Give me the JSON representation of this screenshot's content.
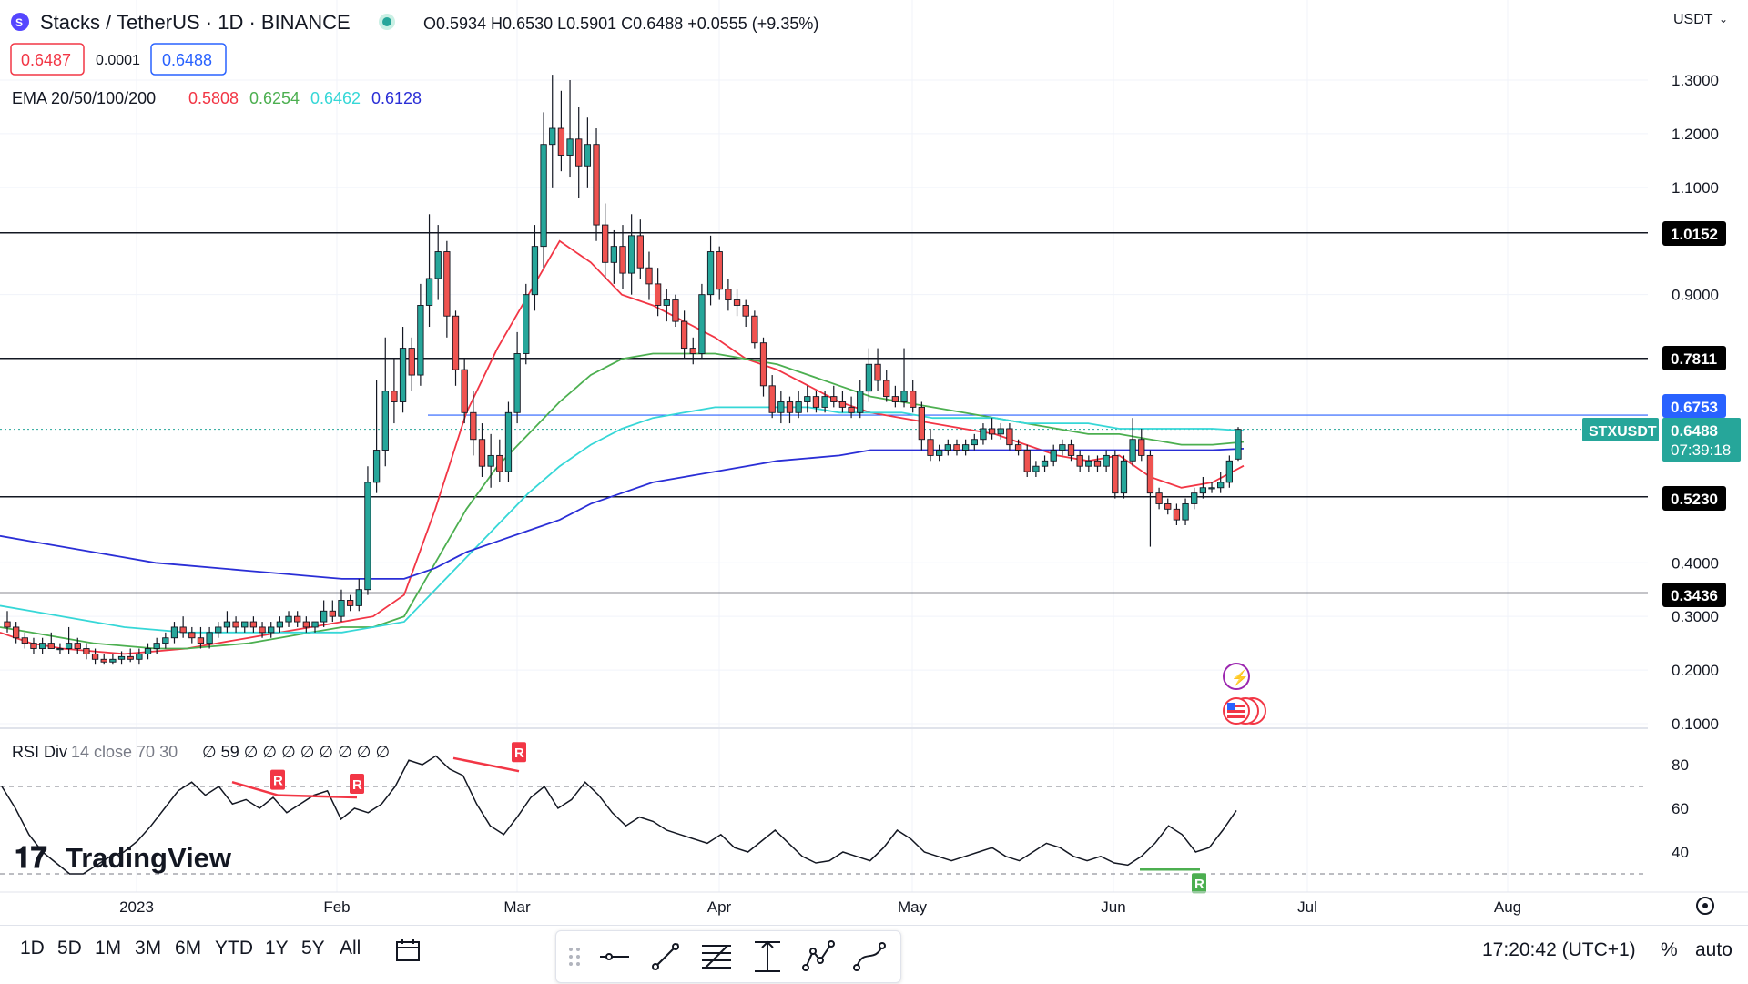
{
  "header": {
    "symbol_name": "Stacks / TetherUS · 1D · BINANCE",
    "ohlc": "O0.5934 H0.6530 L0.5901 C0.6488 +0.0555 (+9.35%)",
    "bid": "0.6487",
    "spread": "0.0001",
    "ask": "0.6488",
    "currency": "USDT"
  },
  "ema_legend": {
    "label": "EMA 20/50/100/200",
    "values": [
      "0.5808",
      "0.6254",
      "0.6462",
      "0.6128"
    ],
    "colors": [
      "#f23645",
      "#4caf50",
      "#36d7d7",
      "#2a2ed6"
    ]
  },
  "rsi_legend": {
    "label": "RSI Div",
    "params": "14 close 70 30",
    "values": "∅ 59 ∅ ∅ ∅ ∅ ∅ ∅ ∅ ∅"
  },
  "price_tags": {
    "symbol": "STXUSDT",
    "last": "0.6488",
    "countdown": "07:39:18",
    "blue_line": "0.6753"
  },
  "levels": [
    "1.0152",
    "0.7811",
    "0.5230",
    "0.3436"
  ],
  "watermark": "TradingView",
  "timeframes": [
    "1D",
    "5D",
    "1M",
    "3M",
    "6M",
    "YTD",
    "1Y",
    "5Y",
    "All"
  ],
  "clock": "17:20:42 (UTC+1)",
  "percent_label": "%",
  "auto_label": "auto",
  "colors": {
    "up": "#26a69a",
    "down": "#ef5350",
    "background": "#ffffff",
    "level_line": "#131722",
    "blue_line": "#2962ff"
  },
  "chart_data": {
    "type": "candlestick",
    "title": "Stacks / TetherUS · 1D · BINANCE",
    "y_ticks": [
      "1.3000",
      "1.2000",
      "1.1000",
      "0.9000",
      "0.4000",
      "0.3000",
      "0.2000",
      "0.1000"
    ],
    "x_ticks": [
      "2023",
      "Feb",
      "Mar",
      "Apr",
      "May",
      "Jun",
      "Jul",
      "Aug"
    ],
    "ylim": [
      0.1,
      1.3
    ],
    "horizontal_levels": [
      1.0152,
      0.7811,
      0.6753,
      0.523,
      0.3436
    ],
    "candles": [
      {
        "o": 0.29,
        "h": 0.31,
        "l": 0.27,
        "c": 0.28
      },
      {
        "o": 0.28,
        "h": 0.29,
        "l": 0.25,
        "c": 0.26
      },
      {
        "o": 0.26,
        "h": 0.27,
        "l": 0.24,
        "c": 0.25
      },
      {
        "o": 0.25,
        "h": 0.26,
        "l": 0.23,
        "c": 0.24
      },
      {
        "o": 0.24,
        "h": 0.26,
        "l": 0.23,
        "c": 0.25
      },
      {
        "o": 0.25,
        "h": 0.27,
        "l": 0.24,
        "c": 0.24
      },
      {
        "o": 0.24,
        "h": 0.25,
        "l": 0.23,
        "c": 0.24
      },
      {
        "o": 0.24,
        "h": 0.28,
        "l": 0.23,
        "c": 0.25
      },
      {
        "o": 0.25,
        "h": 0.26,
        "l": 0.23,
        "c": 0.24
      },
      {
        "o": 0.24,
        "h": 0.25,
        "l": 0.22,
        "c": 0.23
      },
      {
        "o": 0.23,
        "h": 0.24,
        "l": 0.21,
        "c": 0.22
      },
      {
        "o": 0.22,
        "h": 0.23,
        "l": 0.21,
        "c": 0.215
      },
      {
        "o": 0.215,
        "h": 0.23,
        "l": 0.21,
        "c": 0.22
      },
      {
        "o": 0.22,
        "h": 0.235,
        "l": 0.21,
        "c": 0.225
      },
      {
        "o": 0.225,
        "h": 0.24,
        "l": 0.215,
        "c": 0.22
      },
      {
        "o": 0.22,
        "h": 0.24,
        "l": 0.21,
        "c": 0.23
      },
      {
        "o": 0.23,
        "h": 0.25,
        "l": 0.22,
        "c": 0.24
      },
      {
        "o": 0.24,
        "h": 0.26,
        "l": 0.23,
        "c": 0.25
      },
      {
        "o": 0.25,
        "h": 0.27,
        "l": 0.24,
        "c": 0.26
      },
      {
        "o": 0.26,
        "h": 0.29,
        "l": 0.25,
        "c": 0.28
      },
      {
        "o": 0.28,
        "h": 0.3,
        "l": 0.26,
        "c": 0.27
      },
      {
        "o": 0.27,
        "h": 0.28,
        "l": 0.25,
        "c": 0.26
      },
      {
        "o": 0.26,
        "h": 0.28,
        "l": 0.24,
        "c": 0.25
      },
      {
        "o": 0.25,
        "h": 0.28,
        "l": 0.24,
        "c": 0.27
      },
      {
        "o": 0.27,
        "h": 0.29,
        "l": 0.26,
        "c": 0.28
      },
      {
        "o": 0.28,
        "h": 0.31,
        "l": 0.27,
        "c": 0.29
      },
      {
        "o": 0.29,
        "h": 0.3,
        "l": 0.27,
        "c": 0.28
      },
      {
        "o": 0.28,
        "h": 0.29,
        "l": 0.27,
        "c": 0.29
      },
      {
        "o": 0.29,
        "h": 0.3,
        "l": 0.27,
        "c": 0.28
      },
      {
        "o": 0.28,
        "h": 0.29,
        "l": 0.26,
        "c": 0.27
      },
      {
        "o": 0.27,
        "h": 0.29,
        "l": 0.26,
        "c": 0.28
      },
      {
        "o": 0.28,
        "h": 0.3,
        "l": 0.27,
        "c": 0.29
      },
      {
        "o": 0.29,
        "h": 0.31,
        "l": 0.28,
        "c": 0.3
      },
      {
        "o": 0.3,
        "h": 0.31,
        "l": 0.28,
        "c": 0.29
      },
      {
        "o": 0.29,
        "h": 0.3,
        "l": 0.27,
        "c": 0.28
      },
      {
        "o": 0.28,
        "h": 0.29,
        "l": 0.27,
        "c": 0.29
      },
      {
        "o": 0.29,
        "h": 0.33,
        "l": 0.28,
        "c": 0.31
      },
      {
        "o": 0.31,
        "h": 0.33,
        "l": 0.29,
        "c": 0.3
      },
      {
        "o": 0.3,
        "h": 0.35,
        "l": 0.29,
        "c": 0.33
      },
      {
        "o": 0.33,
        "h": 0.34,
        "l": 0.31,
        "c": 0.32
      },
      {
        "o": 0.32,
        "h": 0.37,
        "l": 0.31,
        "c": 0.35
      },
      {
        "o": 0.35,
        "h": 0.58,
        "l": 0.34,
        "c": 0.55
      },
      {
        "o": 0.55,
        "h": 0.74,
        "l": 0.53,
        "c": 0.61
      },
      {
        "o": 0.61,
        "h": 0.82,
        "l": 0.58,
        "c": 0.72
      },
      {
        "o": 0.72,
        "h": 0.78,
        "l": 0.66,
        "c": 0.7
      },
      {
        "o": 0.7,
        "h": 0.84,
        "l": 0.68,
        "c": 0.8
      },
      {
        "o": 0.8,
        "h": 0.82,
        "l": 0.72,
        "c": 0.75
      },
      {
        "o": 0.75,
        "h": 0.92,
        "l": 0.73,
        "c": 0.88
      },
      {
        "o": 0.88,
        "h": 1.05,
        "l": 0.84,
        "c": 0.93
      },
      {
        "o": 0.93,
        "h": 1.03,
        "l": 0.89,
        "c": 0.98
      },
      {
        "o": 0.98,
        "h": 1.0,
        "l": 0.82,
        "c": 0.86
      },
      {
        "o": 0.86,
        "h": 0.87,
        "l": 0.73,
        "c": 0.76
      },
      {
        "o": 0.76,
        "h": 0.78,
        "l": 0.66,
        "c": 0.68
      },
      {
        "o": 0.68,
        "h": 0.72,
        "l": 0.6,
        "c": 0.63
      },
      {
        "o": 0.63,
        "h": 0.66,
        "l": 0.56,
        "c": 0.58
      },
      {
        "o": 0.58,
        "h": 0.64,
        "l": 0.54,
        "c": 0.6
      },
      {
        "o": 0.6,
        "h": 0.63,
        "l": 0.55,
        "c": 0.57
      },
      {
        "o": 0.57,
        "h": 0.7,
        "l": 0.55,
        "c": 0.68
      },
      {
        "o": 0.68,
        "h": 0.83,
        "l": 0.66,
        "c": 0.79
      },
      {
        "o": 0.79,
        "h": 0.92,
        "l": 0.77,
        "c": 0.9
      },
      {
        "o": 0.9,
        "h": 1.03,
        "l": 0.87,
        "c": 0.99
      },
      {
        "o": 0.99,
        "h": 1.24,
        "l": 0.95,
        "c": 1.18
      },
      {
        "o": 1.18,
        "h": 1.31,
        "l": 1.1,
        "c": 1.21
      },
      {
        "o": 1.21,
        "h": 1.28,
        "l": 1.13,
        "c": 1.16
      },
      {
        "o": 1.16,
        "h": 1.3,
        "l": 1.12,
        "c": 1.19
      },
      {
        "o": 1.19,
        "h": 1.25,
        "l": 1.08,
        "c": 1.14
      },
      {
        "o": 1.14,
        "h": 1.23,
        "l": 1.1,
        "c": 1.18
      },
      {
        "o": 1.18,
        "h": 1.21,
        "l": 1.0,
        "c": 1.03
      },
      {
        "o": 1.03,
        "h": 1.07,
        "l": 0.93,
        "c": 0.96
      },
      {
        "o": 0.96,
        "h": 1.02,
        "l": 0.92,
        "c": 0.99
      },
      {
        "o": 0.99,
        "h": 1.03,
        "l": 0.91,
        "c": 0.94
      },
      {
        "o": 0.94,
        "h": 1.05,
        "l": 0.9,
        "c": 1.01
      },
      {
        "o": 1.01,
        "h": 1.04,
        "l": 0.93,
        "c": 0.95
      },
      {
        "o": 0.95,
        "h": 0.98,
        "l": 0.89,
        "c": 0.92
      },
      {
        "o": 0.92,
        "h": 0.95,
        "l": 0.86,
        "c": 0.88
      },
      {
        "o": 0.88,
        "h": 0.91,
        "l": 0.85,
        "c": 0.89
      },
      {
        "o": 0.89,
        "h": 0.9,
        "l": 0.84,
        "c": 0.85
      },
      {
        "o": 0.85,
        "h": 0.87,
        "l": 0.78,
        "c": 0.8
      },
      {
        "o": 0.8,
        "h": 0.82,
        "l": 0.77,
        "c": 0.79
      },
      {
        "o": 0.79,
        "h": 0.92,
        "l": 0.78,
        "c": 0.9
      },
      {
        "o": 0.9,
        "h": 1.01,
        "l": 0.88,
        "c": 0.98
      },
      {
        "o": 0.98,
        "h": 0.99,
        "l": 0.89,
        "c": 0.91
      },
      {
        "o": 0.91,
        "h": 0.93,
        "l": 0.87,
        "c": 0.89
      },
      {
        "o": 0.89,
        "h": 0.91,
        "l": 0.86,
        "c": 0.88
      },
      {
        "o": 0.88,
        "h": 0.89,
        "l": 0.84,
        "c": 0.86
      },
      {
        "o": 0.86,
        "h": 0.87,
        "l": 0.8,
        "c": 0.81
      },
      {
        "o": 0.81,
        "h": 0.82,
        "l": 0.71,
        "c": 0.73
      },
      {
        "o": 0.73,
        "h": 0.75,
        "l": 0.67,
        "c": 0.68
      },
      {
        "o": 0.68,
        "h": 0.72,
        "l": 0.66,
        "c": 0.7
      },
      {
        "o": 0.7,
        "h": 0.71,
        "l": 0.66,
        "c": 0.68
      },
      {
        "o": 0.68,
        "h": 0.72,
        "l": 0.67,
        "c": 0.7
      },
      {
        "o": 0.7,
        "h": 0.73,
        "l": 0.68,
        "c": 0.71
      },
      {
        "o": 0.71,
        "h": 0.72,
        "l": 0.68,
        "c": 0.69
      },
      {
        "o": 0.69,
        "h": 0.72,
        "l": 0.68,
        "c": 0.71
      },
      {
        "o": 0.71,
        "h": 0.73,
        "l": 0.69,
        "c": 0.7
      },
      {
        "o": 0.7,
        "h": 0.72,
        "l": 0.68,
        "c": 0.69
      },
      {
        "o": 0.69,
        "h": 0.71,
        "l": 0.67,
        "c": 0.68
      },
      {
        "o": 0.68,
        "h": 0.74,
        "l": 0.67,
        "c": 0.72
      },
      {
        "o": 0.72,
        "h": 0.8,
        "l": 0.7,
        "c": 0.77
      },
      {
        "o": 0.77,
        "h": 0.8,
        "l": 0.72,
        "c": 0.74
      },
      {
        "o": 0.74,
        "h": 0.76,
        "l": 0.7,
        "c": 0.71
      },
      {
        "o": 0.71,
        "h": 0.73,
        "l": 0.69,
        "c": 0.7
      },
      {
        "o": 0.7,
        "h": 0.8,
        "l": 0.69,
        "c": 0.72
      },
      {
        "o": 0.72,
        "h": 0.74,
        "l": 0.68,
        "c": 0.69
      },
      {
        "o": 0.69,
        "h": 0.7,
        "l": 0.61,
        "c": 0.63
      },
      {
        "o": 0.63,
        "h": 0.65,
        "l": 0.59,
        "c": 0.6
      },
      {
        "o": 0.6,
        "h": 0.62,
        "l": 0.59,
        "c": 0.61
      },
      {
        "o": 0.61,
        "h": 0.63,
        "l": 0.6,
        "c": 0.62
      },
      {
        "o": 0.62,
        "h": 0.63,
        "l": 0.6,
        "c": 0.61
      },
      {
        "o": 0.61,
        "h": 0.63,
        "l": 0.6,
        "c": 0.62
      },
      {
        "o": 0.62,
        "h": 0.64,
        "l": 0.61,
        "c": 0.63
      },
      {
        "o": 0.63,
        "h": 0.66,
        "l": 0.62,
        "c": 0.65
      },
      {
        "o": 0.65,
        "h": 0.67,
        "l": 0.63,
        "c": 0.64
      },
      {
        "o": 0.64,
        "h": 0.66,
        "l": 0.63,
        "c": 0.65
      },
      {
        "o": 0.65,
        "h": 0.66,
        "l": 0.61,
        "c": 0.62
      },
      {
        "o": 0.62,
        "h": 0.63,
        "l": 0.6,
        "c": 0.61
      },
      {
        "o": 0.61,
        "h": 0.62,
        "l": 0.56,
        "c": 0.57
      },
      {
        "o": 0.57,
        "h": 0.59,
        "l": 0.56,
        "c": 0.58
      },
      {
        "o": 0.58,
        "h": 0.6,
        "l": 0.57,
        "c": 0.59
      },
      {
        "o": 0.59,
        "h": 0.62,
        "l": 0.58,
        "c": 0.61
      },
      {
        "o": 0.61,
        "h": 0.63,
        "l": 0.6,
        "c": 0.62
      },
      {
        "o": 0.62,
        "h": 0.63,
        "l": 0.59,
        "c": 0.6
      },
      {
        "o": 0.6,
        "h": 0.61,
        "l": 0.57,
        "c": 0.58
      },
      {
        "o": 0.58,
        "h": 0.6,
        "l": 0.57,
        "c": 0.59
      },
      {
        "o": 0.59,
        "h": 0.6,
        "l": 0.57,
        "c": 0.58
      },
      {
        "o": 0.58,
        "h": 0.61,
        "l": 0.57,
        "c": 0.6
      },
      {
        "o": 0.6,
        "h": 0.61,
        "l": 0.52,
        "c": 0.53
      },
      {
        "o": 0.53,
        "h": 0.6,
        "l": 0.52,
        "c": 0.59
      },
      {
        "o": 0.59,
        "h": 0.67,
        "l": 0.58,
        "c": 0.63
      },
      {
        "o": 0.63,
        "h": 0.65,
        "l": 0.59,
        "c": 0.6
      },
      {
        "o": 0.6,
        "h": 0.61,
        "l": 0.43,
        "c": 0.53
      },
      {
        "o": 0.53,
        "h": 0.54,
        "l": 0.5,
        "c": 0.51
      },
      {
        "o": 0.51,
        "h": 0.52,
        "l": 0.49,
        "c": 0.5
      },
      {
        "o": 0.5,
        "h": 0.51,
        "l": 0.47,
        "c": 0.48
      },
      {
        "o": 0.48,
        "h": 0.52,
        "l": 0.47,
        "c": 0.51
      },
      {
        "o": 0.51,
        "h": 0.54,
        "l": 0.5,
        "c": 0.53
      },
      {
        "o": 0.53,
        "h": 0.56,
        "l": 0.52,
        "c": 0.54
      },
      {
        "o": 0.54,
        "h": 0.55,
        "l": 0.53,
        "c": 0.54
      },
      {
        "o": 0.54,
        "h": 0.57,
        "l": 0.53,
        "c": 0.55
      },
      {
        "o": 0.55,
        "h": 0.6,
        "l": 0.54,
        "c": 0.59
      },
      {
        "o": 0.5934,
        "h": 0.653,
        "l": 0.5901,
        "c": 0.6488
      }
    ],
    "ema": [
      {
        "name": "EMA 20",
        "color": "#f23645",
        "points": [
          0.27,
          0.25,
          0.24,
          0.235,
          0.23,
          0.235,
          0.24,
          0.25,
          0.26,
          0.27,
          0.28,
          0.29,
          0.3,
          0.34,
          0.5,
          0.68,
          0.8,
          0.9,
          1.0,
          0.96,
          0.9,
          0.88,
          0.85,
          0.82,
          0.78,
          0.76,
          0.73,
          0.7,
          0.68,
          0.67,
          0.66,
          0.65,
          0.64,
          0.62,
          0.6,
          0.59,
          0.6,
          0.56,
          0.54,
          0.55,
          0.5808
        ]
      },
      {
        "name": "EMA 50",
        "color": "#4caf50",
        "points": [
          0.28,
          0.27,
          0.26,
          0.25,
          0.245,
          0.24,
          0.24,
          0.245,
          0.25,
          0.26,
          0.27,
          0.28,
          0.28,
          0.3,
          0.4,
          0.5,
          0.58,
          0.64,
          0.7,
          0.75,
          0.78,
          0.79,
          0.79,
          0.79,
          0.78,
          0.77,
          0.75,
          0.73,
          0.71,
          0.7,
          0.69,
          0.68,
          0.67,
          0.66,
          0.65,
          0.64,
          0.64,
          0.63,
          0.62,
          0.62,
          0.6254
        ]
      },
      {
        "name": "EMA 100",
        "color": "#36d7d7",
        "points": [
          0.32,
          0.31,
          0.3,
          0.29,
          0.28,
          0.275,
          0.27,
          0.27,
          0.27,
          0.27,
          0.27,
          0.27,
          0.28,
          0.29,
          0.35,
          0.41,
          0.47,
          0.53,
          0.58,
          0.62,
          0.65,
          0.67,
          0.68,
          0.69,
          0.69,
          0.69,
          0.69,
          0.68,
          0.68,
          0.68,
          0.67,
          0.67,
          0.67,
          0.66,
          0.66,
          0.66,
          0.65,
          0.65,
          0.65,
          0.65,
          0.6462
        ]
      },
      {
        "name": "EMA 200",
        "color": "#2a2ed6",
        "points": [
          0.45,
          0.44,
          0.43,
          0.42,
          0.41,
          0.4,
          0.395,
          0.39,
          0.385,
          0.38,
          0.375,
          0.37,
          0.37,
          0.37,
          0.39,
          0.42,
          0.44,
          0.46,
          0.48,
          0.51,
          0.53,
          0.55,
          0.56,
          0.57,
          0.58,
          0.59,
          0.595,
          0.6,
          0.61,
          0.61,
          0.61,
          0.61,
          0.61,
          0.61,
          0.61,
          0.61,
          0.61,
          0.61,
          0.61,
          0.61,
          0.6128
        ]
      }
    ],
    "rsi": {
      "y_ticks": [
        "80",
        "60",
        "40"
      ],
      "upper": 70,
      "lower": 30,
      "points": [
        70,
        60,
        48,
        40,
        35,
        30,
        30,
        34,
        38,
        40,
        45,
        52,
        60,
        68,
        72,
        66,
        70,
        62,
        64,
        60,
        65,
        58,
        62,
        66,
        68,
        55,
        60,
        58,
        62,
        70,
        82,
        80,
        84,
        78,
        75,
        62,
        52,
        48,
        56,
        65,
        70,
        60,
        64,
        72,
        66,
        58,
        52,
        56,
        54,
        50,
        48,
        46,
        44,
        48,
        42,
        40,
        45,
        50,
        44,
        38,
        35,
        36,
        40,
        38,
        36,
        42,
        50,
        46,
        40,
        38,
        36,
        38,
        40,
        42,
        38,
        36,
        40,
        44,
        42,
        38,
        36,
        38,
        35,
        34,
        38,
        44,
        52,
        48,
        40,
        42,
        50,
        59
      ],
      "markers": [
        "R",
        "R",
        "R",
        "R"
      ]
    }
  }
}
